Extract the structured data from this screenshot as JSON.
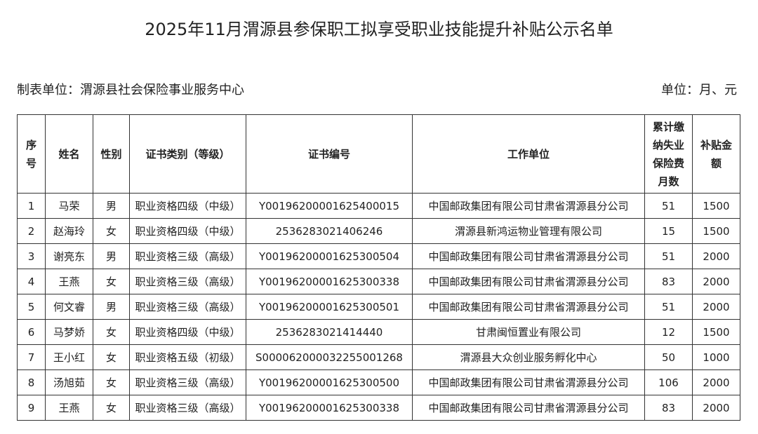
{
  "title": "2025年11月渭源县参保职工拟享受职业技能提升补贴公示名单",
  "org_label": "制表单位：渭源县社会保险事业服务中心",
  "unit_label": "单位：月、元",
  "headers": [
    "序号",
    "姓名",
    "性别",
    "证书类别（等级）",
    "证书编号",
    "工作单位",
    "累计缴纳失业保险费月数",
    "补贴金额"
  ],
  "rows": [
    [
      "1",
      "马荣",
      "男",
      "职业资格四级（中级）",
      "Y00196200001625400015",
      "中国邮政集团有限公司甘肃省渭源县分公司",
      "51",
      "1500"
    ],
    [
      "2",
      "赵海玲",
      "女",
      "职业资格四级（中级）",
      "2536283021406246",
      "渭源县新鸿运物业管理有限公司",
      "15",
      "1500"
    ],
    [
      "3",
      "谢亮东",
      "男",
      "职业资格三级（高级）",
      "Y00196200001625300504",
      "中国邮政集团有限公司甘肃省渭源县分公司",
      "51",
      "2000"
    ],
    [
      "4",
      "王燕",
      "女",
      "职业资格三级（高级）",
      "Y00196200001625300338",
      "中国邮政集团有限公司甘肃省渭源县分公司",
      "83",
      "2000"
    ],
    [
      "5",
      "何文睿",
      "男",
      "职业资格三级（高级）",
      "Y00196200001625300501",
      "中国邮政集团有限公司甘肃省渭源县分公司",
      "51",
      "2000"
    ],
    [
      "6",
      "马梦娇",
      "女",
      "职业资格四级（中级）",
      "2536283021414440",
      "甘肃闽恒置业有限公司",
      "12",
      "1500"
    ],
    [
      "7",
      "王小红",
      "女",
      "职业资格五级（初级）",
      "S00006200003225500126８",
      "渭源县大众创业服务孵化中心",
      "50",
      "1000"
    ],
    [
      "8",
      "汤旭茹",
      "女",
      "职业资格三级（高级）",
      "Y00196200001625300500",
      "中国邮政集团有限公司甘肃省渭源县分公司",
      "106",
      "2000"
    ],
    [
      "9",
      "王燕",
      "女",
      "职业资格三级（高级）",
      "Y00196200001625300338",
      "中国邮政集团有限公司甘肃省渭源县分公司",
      "83",
      "2000"
    ]
  ]
}
